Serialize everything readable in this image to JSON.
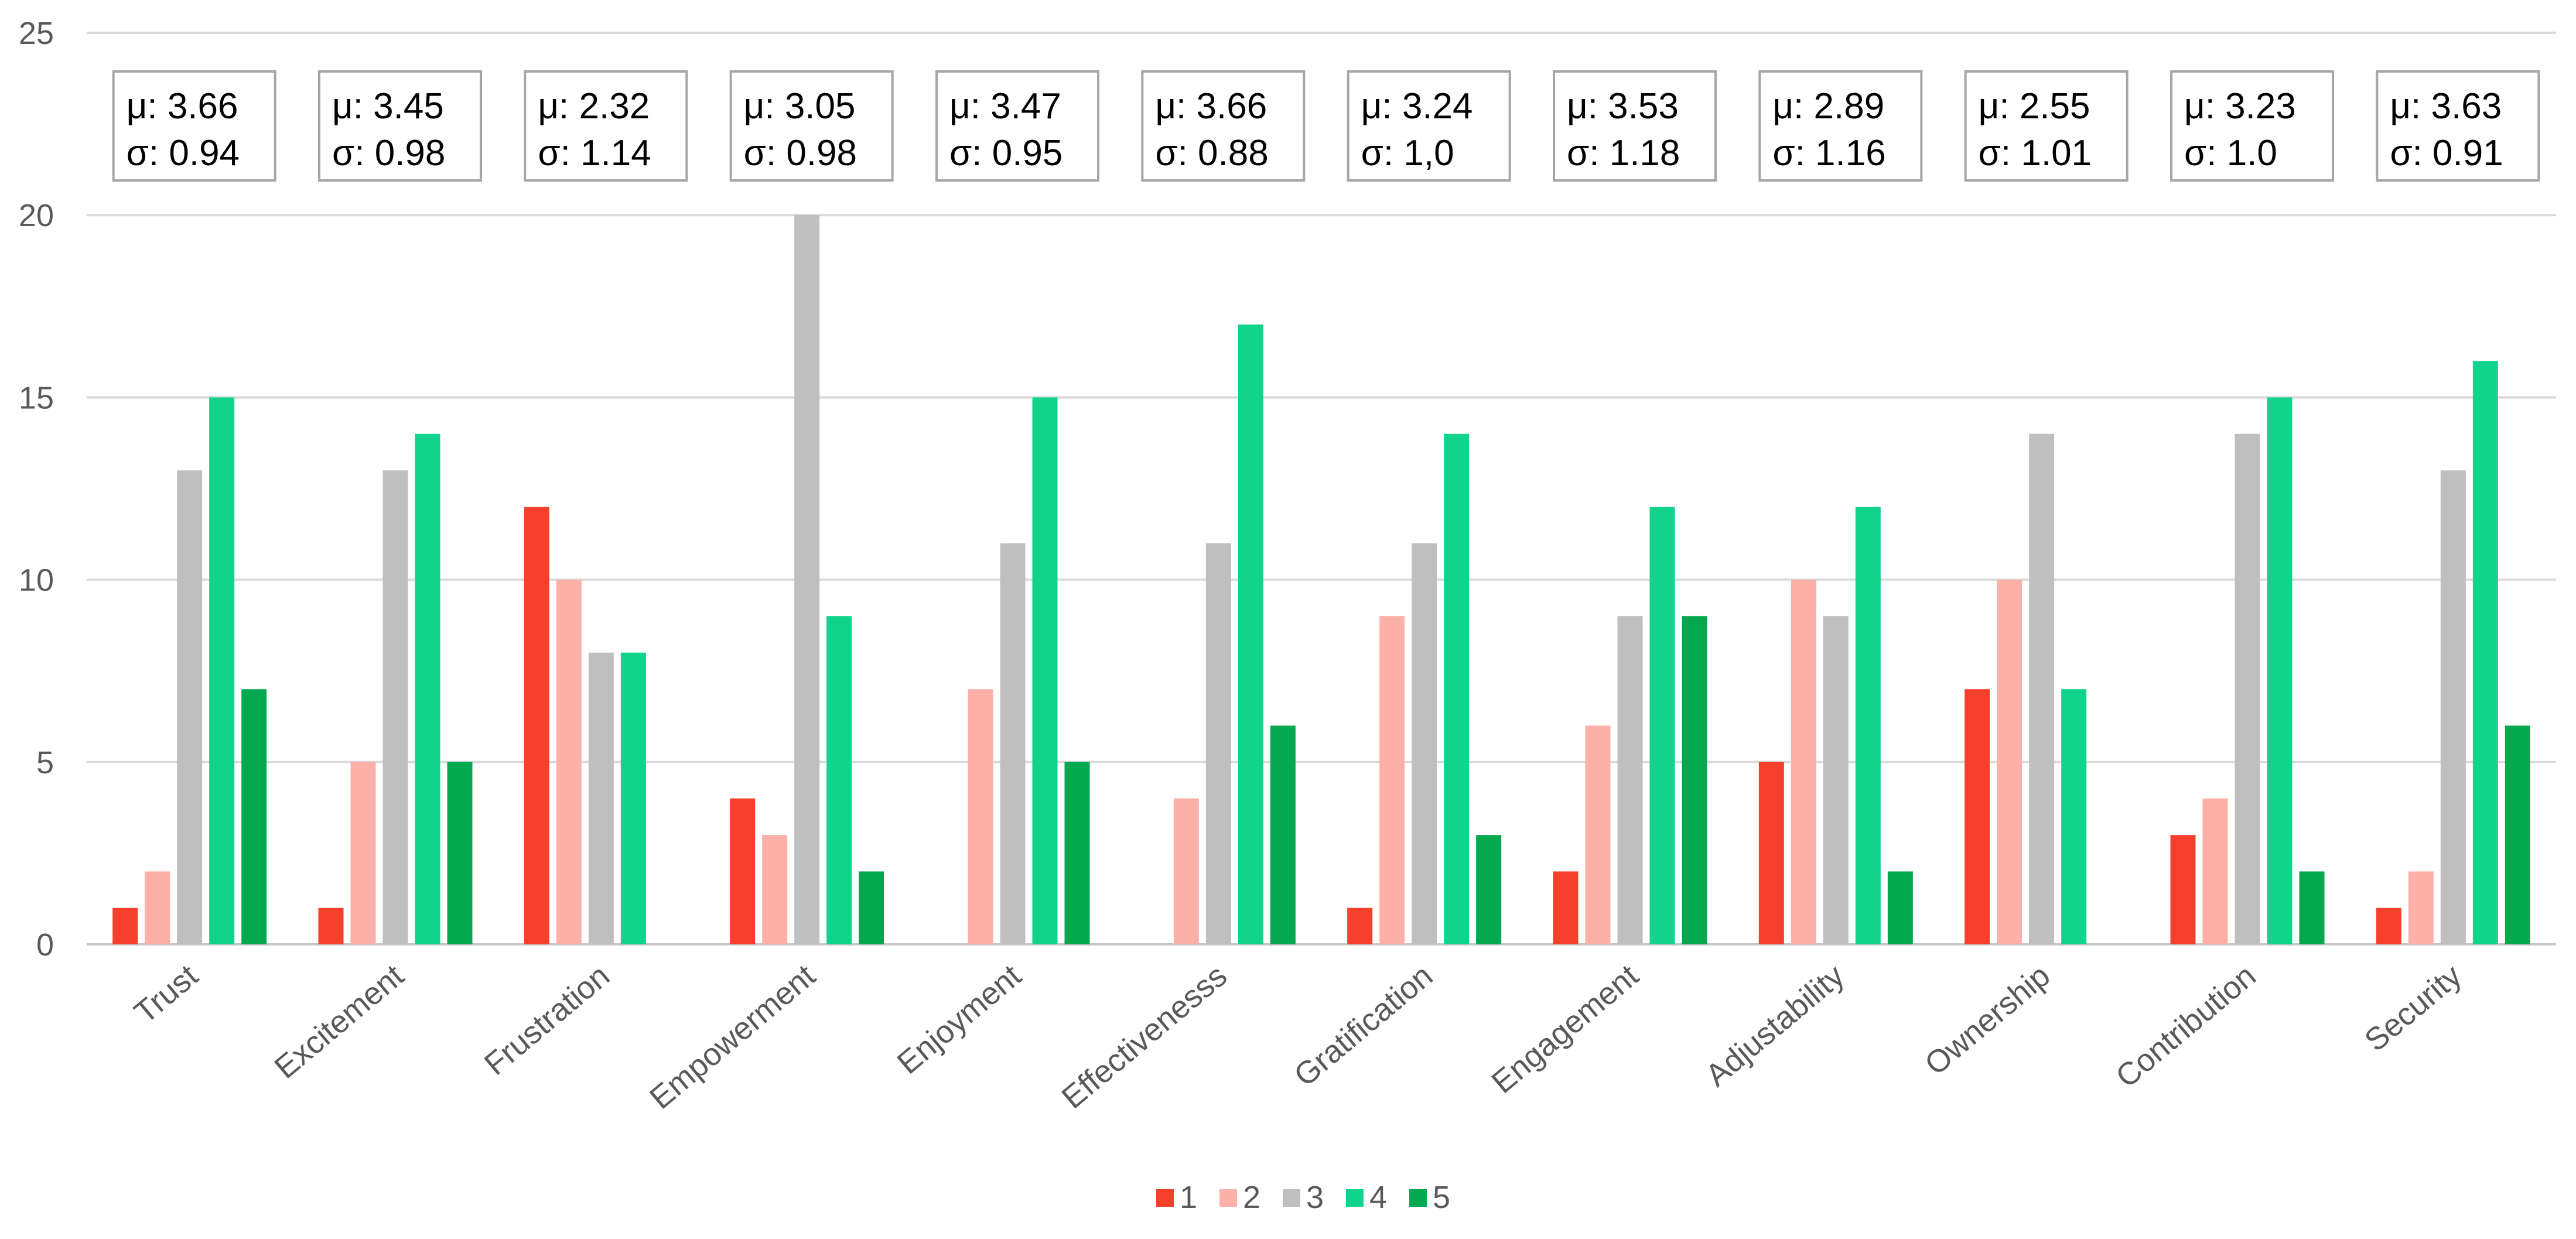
{
  "chart_data": {
    "type": "bar",
    "title": "",
    "xlabel": "",
    "ylabel": "",
    "ylim": [
      0,
      25
    ],
    "yticks": [
      0,
      5,
      10,
      15,
      20,
      25
    ],
    "grid": true,
    "legend_position": "bottom-center",
    "categories": [
      "Trust",
      "Excitement",
      "Frustration",
      "Empowerment",
      "Enjoyment",
      "Effectivenesss",
      "Gratification",
      "Engagement",
      "Adjustability",
      "Ownership",
      "Contribution",
      "Security"
    ],
    "series": [
      {
        "name": "1",
        "color": "#f5402c",
        "values": [
          1,
          1,
          12,
          4,
          0,
          0,
          1,
          2,
          5,
          7,
          3,
          1
        ]
      },
      {
        "name": "2",
        "color": "#fbb0a8",
        "values": [
          2,
          5,
          10,
          3,
          7,
          4,
          9,
          6,
          10,
          10,
          4,
          2
        ]
      },
      {
        "name": "3",
        "color": "#bfbfbf",
        "values": [
          13,
          13,
          8,
          20,
          11,
          11,
          11,
          9,
          9,
          14,
          14,
          13
        ]
      },
      {
        "name": "4",
        "color": "#12d38b",
        "values": [
          15,
          14,
          8,
          9,
          15,
          17,
          14,
          12,
          12,
          7,
          15,
          16
        ]
      },
      {
        "name": "5",
        "color": "#03a84f",
        "values": [
          7,
          5,
          0,
          2,
          5,
          6,
          3,
          9,
          2,
          0,
          2,
          6
        ]
      }
    ],
    "annotations": [
      {
        "mu": "μ: 3.66",
        "sigma": "σ: 0.94"
      },
      {
        "mu": "μ: 3.45",
        "sigma": "σ: 0.98"
      },
      {
        "mu": "μ: 2.32",
        "sigma": "σ: 1.14"
      },
      {
        "mu": "μ: 3.05",
        "sigma": "σ: 0.98"
      },
      {
        "mu": "μ: 3.47",
        "sigma": "σ: 0.95"
      },
      {
        "mu": "μ: 3.66",
        "sigma": "σ: 0.88"
      },
      {
        "mu": "μ: 3.24",
        "sigma": "σ: 1,0"
      },
      {
        "mu": "μ: 3.53",
        "sigma": "σ: 1.18"
      },
      {
        "mu": "μ: 2.89",
        "sigma": "σ: 1.16"
      },
      {
        "mu": "μ: 2.55",
        "sigma": "σ: 1.01"
      },
      {
        "mu": "μ: 3.23",
        "sigma": "σ: 1.0"
      },
      {
        "mu": "μ: 3.63",
        "sigma": "σ: 0.91"
      }
    ]
  }
}
